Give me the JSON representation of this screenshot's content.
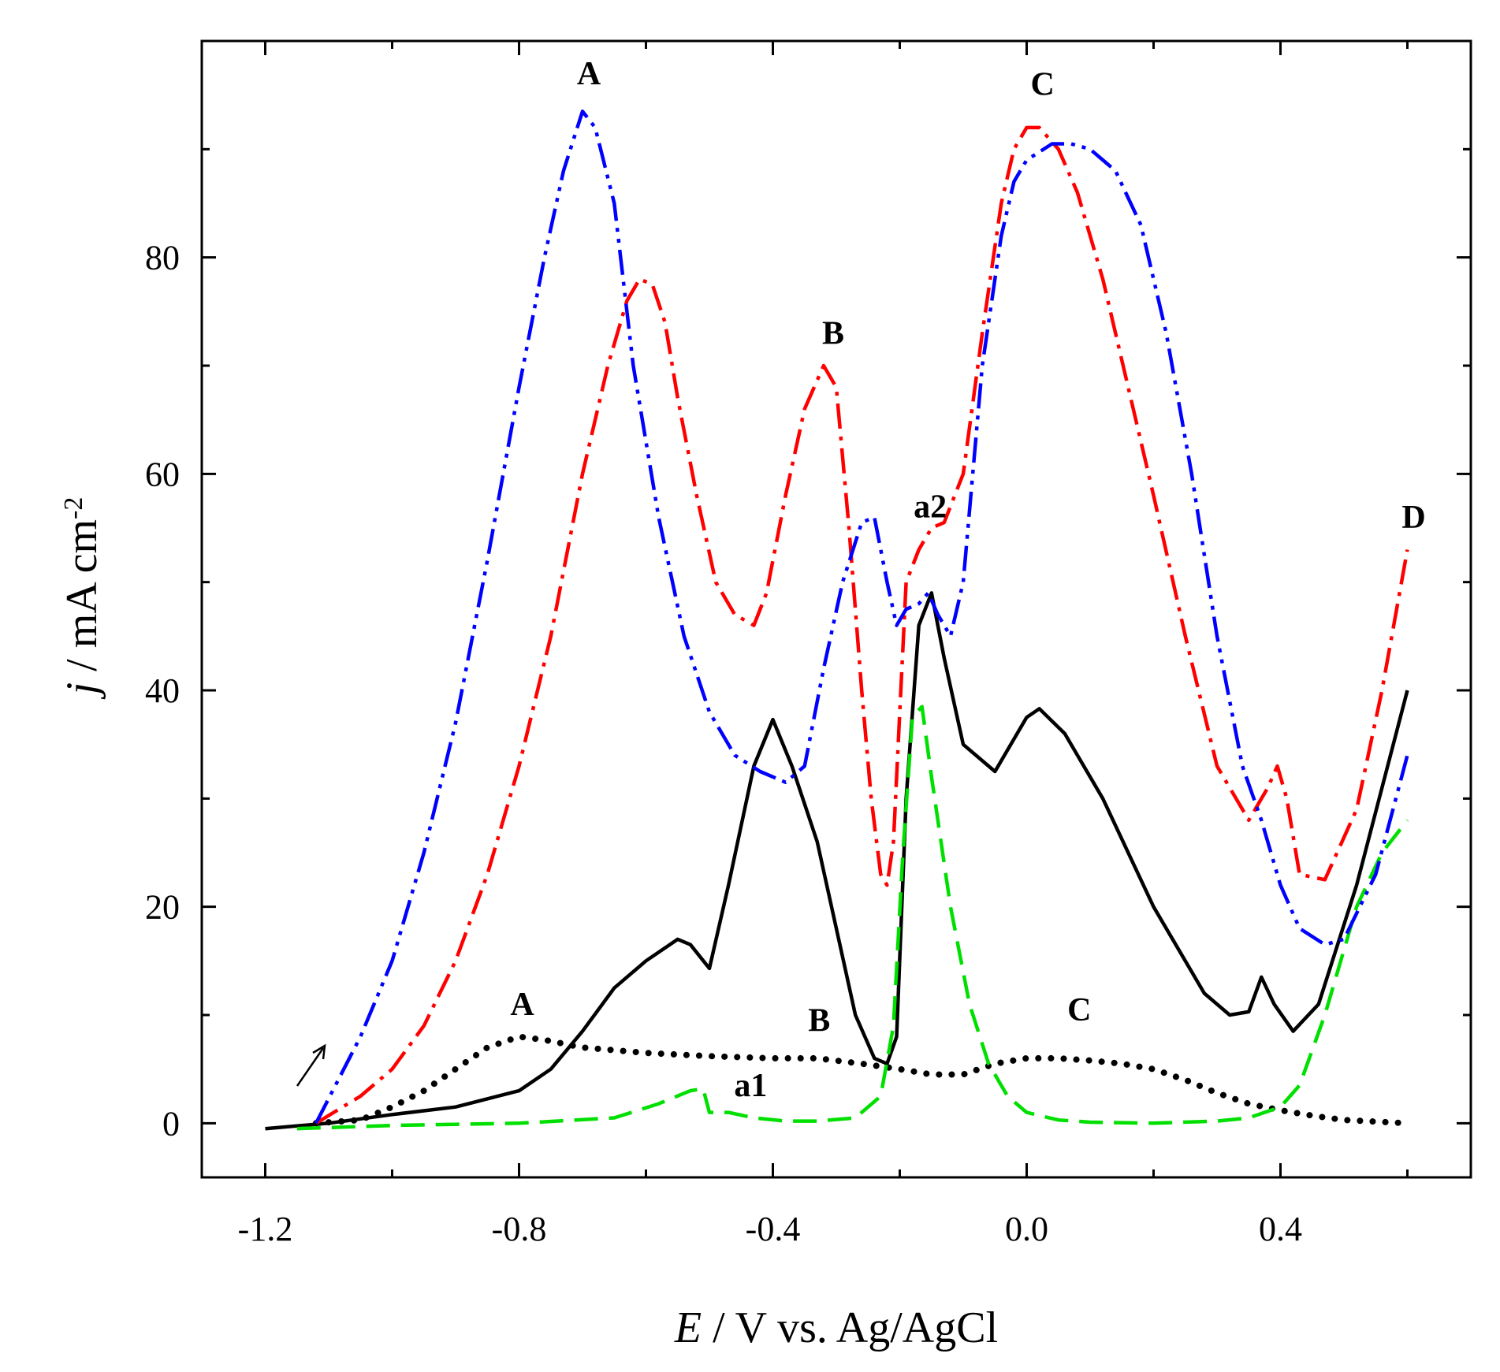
{
  "chart_data": {
    "type": "line",
    "title": "",
    "xlabel": {
      "italic": "E",
      "rest": " / V vs. Ag/AgCl"
    },
    "ylabel": {
      "italic": "j",
      "rest": " / mA cm",
      "sup": "-2"
    },
    "xlim": [
      -1.3,
      0.7
    ],
    "ylim": [
      -5,
      100
    ],
    "xticks": [
      -1.2,
      -0.8,
      -0.4,
      0.0,
      0.4
    ],
    "xtick_labels": [
      "-1.2",
      "-0.8",
      "-0.4",
      "0.0",
      "0.4"
    ],
    "yticks": [
      0,
      20,
      40,
      60,
      80
    ],
    "ytick_labels": [
      "0",
      "20",
      "40",
      "60",
      "80"
    ],
    "grid": false,
    "series": [
      {
        "name": "black-solid",
        "color": "#000000",
        "style": "solid",
        "x": [
          -1.2,
          -1.1,
          -1.0,
          -0.9,
          -0.8,
          -0.75,
          -0.7,
          -0.65,
          -0.6,
          -0.55,
          -0.53,
          -0.5,
          -0.47,
          -0.43,
          -0.4,
          -0.37,
          -0.33,
          -0.3,
          -0.27,
          -0.24,
          -0.22,
          -0.205,
          -0.19,
          -0.17,
          -0.15,
          -0.13,
          -0.1,
          -0.05,
          0.0,
          0.02,
          0.06,
          0.12,
          0.2,
          0.28,
          0.32,
          0.35,
          0.37,
          0.39,
          0.42,
          0.46,
          0.52,
          0.6
        ],
        "y": [
          -0.5,
          0.0,
          0.8,
          1.5,
          3.0,
          5.0,
          8.5,
          12.5,
          15.0,
          17.0,
          16.5,
          14.3,
          22.0,
          33.0,
          37.3,
          33.0,
          26.0,
          18.0,
          10.0,
          6.0,
          5.5,
          8.0,
          30.0,
          46.0,
          49.0,
          43.0,
          35.0,
          32.5,
          37.5,
          38.3,
          36.0,
          30.0,
          20.0,
          12.0,
          10.0,
          10.3,
          13.5,
          11.0,
          8.5,
          11.0,
          22.0,
          40.0
        ]
      },
      {
        "name": "black-dotted",
        "color": "#000000",
        "style": "dotted",
        "x": [
          -1.12,
          -1.05,
          -1.0,
          -0.95,
          -0.9,
          -0.85,
          -0.8,
          -0.76,
          -0.7,
          -0.6,
          -0.5,
          -0.4,
          -0.33,
          -0.26,
          -0.2,
          -0.15,
          -0.1,
          -0.05,
          0.0,
          0.05,
          0.1,
          0.15,
          0.2,
          0.25,
          0.3,
          0.35,
          0.4,
          0.45,
          0.5,
          0.6
        ],
        "y": [
          0.0,
          0.3,
          1.5,
          3.0,
          5.0,
          7.0,
          8.0,
          7.7,
          7.0,
          6.5,
          6.2,
          6.0,
          6.0,
          5.5,
          5.0,
          4.5,
          4.5,
          5.5,
          6.0,
          6.0,
          5.8,
          5.5,
          5.0,
          4.0,
          2.8,
          1.8,
          1.2,
          0.7,
          0.3,
          0.0
        ]
      },
      {
        "name": "green-dashed",
        "color": "#00e000",
        "style": "dashed",
        "x": [
          -1.15,
          -1.0,
          -0.8,
          -0.65,
          -0.58,
          -0.53,
          -0.51,
          -0.5,
          -0.47,
          -0.43,
          -0.38,
          -0.33,
          -0.27,
          -0.23,
          -0.21,
          -0.195,
          -0.18,
          -0.165,
          -0.15,
          -0.12,
          -0.09,
          -0.06,
          -0.03,
          0.0,
          0.05,
          0.1,
          0.2,
          0.3,
          0.35,
          0.4,
          0.43,
          0.47,
          0.52,
          0.56,
          0.6
        ],
        "y": [
          -0.5,
          -0.2,
          0.0,
          0.5,
          1.8,
          3.0,
          3.2,
          1.0,
          1.0,
          0.5,
          0.2,
          0.2,
          0.5,
          2.5,
          9.0,
          25.0,
          37.5,
          38.5,
          32.0,
          20.0,
          11.0,
          5.5,
          2.5,
          1.0,
          0.3,
          0.1,
          0.0,
          0.2,
          0.5,
          1.5,
          3.5,
          10.0,
          20.0,
          25.0,
          28.0
        ]
      },
      {
        "name": "red-dash-dot",
        "color": "#ff0000",
        "style": "dashdot",
        "x": [
          -1.12,
          -1.05,
          -1.0,
          -0.95,
          -0.9,
          -0.85,
          -0.8,
          -0.75,
          -0.7,
          -0.66,
          -0.63,
          -0.61,
          -0.59,
          -0.57,
          -0.55,
          -0.52,
          -0.49,
          -0.46,
          -0.43,
          -0.41,
          -0.38,
          -0.35,
          -0.32,
          -0.3,
          -0.28,
          -0.26,
          -0.245,
          -0.23,
          -0.22,
          -0.21,
          -0.2,
          -0.19,
          -0.17,
          -0.15,
          -0.13,
          -0.1,
          -0.07,
          -0.04,
          -0.02,
          0.0,
          0.02,
          0.05,
          0.08,
          0.12,
          0.16,
          0.2,
          0.25,
          0.3,
          0.35,
          0.38,
          0.395,
          0.41,
          0.43,
          0.47,
          0.52,
          0.56,
          0.6
        ],
        "y": [
          0.0,
          2.5,
          5.0,
          9.0,
          15.0,
          23.0,
          33.0,
          45.0,
          60.0,
          70.0,
          76.0,
          78.0,
          77.5,
          74.0,
          67.0,
          58.0,
          50.0,
          47.0,
          46.0,
          49.0,
          58.0,
          66.0,
          70.0,
          68.0,
          55.0,
          40.0,
          30.0,
          23.0,
          22.0,
          26.0,
          38.0,
          50.0,
          53.0,
          55.0,
          55.5,
          60.0,
          73.0,
          85.0,
          90.0,
          92.0,
          92.0,
          90.0,
          86.0,
          78.0,
          68.0,
          58.0,
          45.0,
          33.0,
          28.0,
          31.0,
          33.0,
          30.0,
          23.0,
          22.5,
          29.0,
          40.0,
          53.0
        ]
      },
      {
        "name": "blue-dash-dot-dot",
        "color": "#0000ff",
        "style": "dashdotdot",
        "x": [
          -1.12,
          -1.05,
          -1.0,
          -0.95,
          -0.9,
          -0.85,
          -0.8,
          -0.76,
          -0.73,
          -0.7,
          -0.68,
          -0.65,
          -0.62,
          -0.58,
          -0.54,
          -0.5,
          -0.46,
          -0.42,
          -0.38,
          -0.35,
          -0.32,
          -0.29,
          -0.26,
          -0.24,
          -0.22,
          -0.205,
          -0.19,
          -0.17,
          -0.155,
          -0.14,
          -0.12,
          -0.1,
          -0.07,
          -0.04,
          -0.02,
          0.0,
          0.04,
          0.07,
          0.1,
          0.14,
          0.18,
          0.22,
          0.26,
          0.3,
          0.34,
          0.37,
          0.4,
          0.43,
          0.47,
          0.5,
          0.55,
          0.6
        ],
        "y": [
          0.0,
          8.0,
          15.0,
          25.0,
          37.0,
          52.0,
          68.0,
          80.0,
          88.0,
          93.5,
          92.0,
          85.0,
          70.0,
          56.0,
          45.0,
          38.0,
          34.0,
          32.5,
          31.5,
          33.0,
          42.0,
          50.0,
          55.5,
          56.0,
          50.0,
          46.0,
          47.5,
          48.0,
          49.0,
          47.0,
          45.0,
          50.0,
          70.0,
          82.0,
          87.0,
          89.0,
          90.5,
          90.5,
          90.0,
          88.0,
          83.0,
          73.0,
          60.0,
          45.0,
          33.0,
          28.0,
          22.0,
          18.0,
          16.5,
          17.0,
          23.0,
          34.0
        ]
      }
    ],
    "annotations": [
      {
        "text": "A",
        "x": -0.69,
        "y": 96
      },
      {
        "text": "C",
        "x": 0.025,
        "y": 95
      },
      {
        "text": "B",
        "x": -0.305,
        "y": 72
      },
      {
        "text": "a2",
        "x": -0.152,
        "y": 56
      },
      {
        "text": "D",
        "x": 0.61,
        "y": 55
      },
      {
        "text": "A",
        "x": -0.795,
        "y": 10
      },
      {
        "text": "B",
        "x": -0.327,
        "y": 8.5
      },
      {
        "text": "C",
        "x": 0.083,
        "y": 9.5
      },
      {
        "text": "a1",
        "x": -0.435,
        "y": 2.5
      }
    ]
  }
}
